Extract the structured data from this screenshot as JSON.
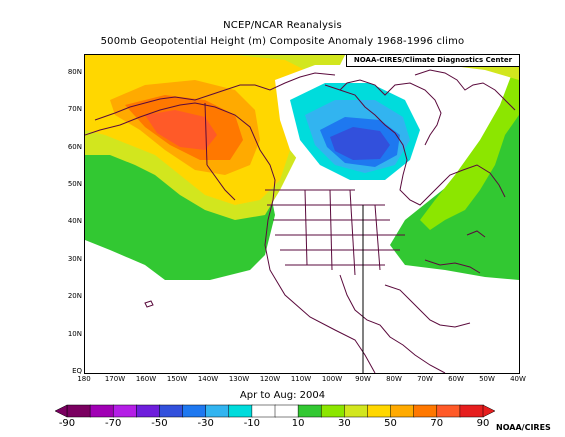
{
  "header": {
    "title": "NCEP/NCAR Reanalysis",
    "subtitle": "500mb Geopotential Height (m) Composite Anomaly 1968-1996 climo",
    "credit": "NOAA-CIRES/Climate Diagnostics Center"
  },
  "map": {
    "lon_range": [
      -180,
      -40
    ],
    "lat_range": [
      0,
      85
    ],
    "y_ticks": [
      "EQ",
      "10N",
      "20N",
      "30N",
      "40N",
      "50N",
      "60N",
      "70N",
      "80N"
    ],
    "x_ticks": [
      "180",
      "170W",
      "160W",
      "150W",
      "140W",
      "130W",
      "120W",
      "110W",
      "100W",
      "90W",
      "80W",
      "70W",
      "60W",
      "50W",
      "40W"
    ],
    "anomaly_centers": [
      {
        "name": "positive-center-alaska",
        "lon": -150,
        "lat": 63,
        "value": 70
      },
      {
        "name": "negative-center-hudson-bay",
        "lon": -91,
        "lat": 58,
        "value": -50
      }
    ]
  },
  "period": "Apr to Aug: 2004",
  "colorbar": {
    "labels": [
      "-90",
      "-70",
      "-50",
      "-30",
      "-10",
      "10",
      "30",
      "50",
      "70",
      "90"
    ],
    "colors": [
      "#7a0060",
      "#a000b4",
      "#b41ee6",
      "#6e1edc",
      "#3250dc",
      "#1e78f0",
      "#32b4f0",
      "#00dcdc",
      "#ffffff",
      "#ffffff",
      "#32c832",
      "#8ce600",
      "#d2e61e",
      "#ffd700",
      "#ffaa00",
      "#ff7800",
      "#ff5a28",
      "#e61e1e"
    ]
  },
  "source": "NOAA/CIRES"
}
